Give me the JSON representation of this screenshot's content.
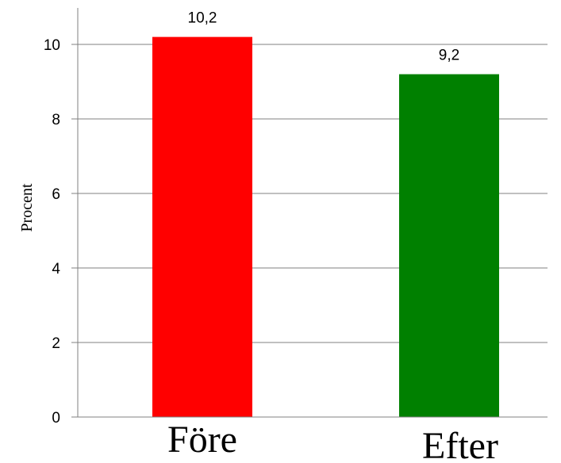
{
  "chart_data": {
    "type": "bar",
    "categories": [
      "Före",
      "Efter"
    ],
    "values": [
      10.2,
      9.2
    ],
    "value_labels": [
      "10,2",
      "9,2"
    ],
    "colors": [
      "#ff0000",
      "#008000"
    ],
    "ylabel": "Procent",
    "ylim": [
      0,
      10.9
    ],
    "yticks": [
      0,
      2,
      4,
      6,
      8,
      10
    ],
    "ytick_labels": [
      "0",
      "2",
      "4",
      "6",
      "8",
      "10"
    ],
    "grid": true,
    "gridline_color": "#808080",
    "axis_color": "#808080"
  }
}
